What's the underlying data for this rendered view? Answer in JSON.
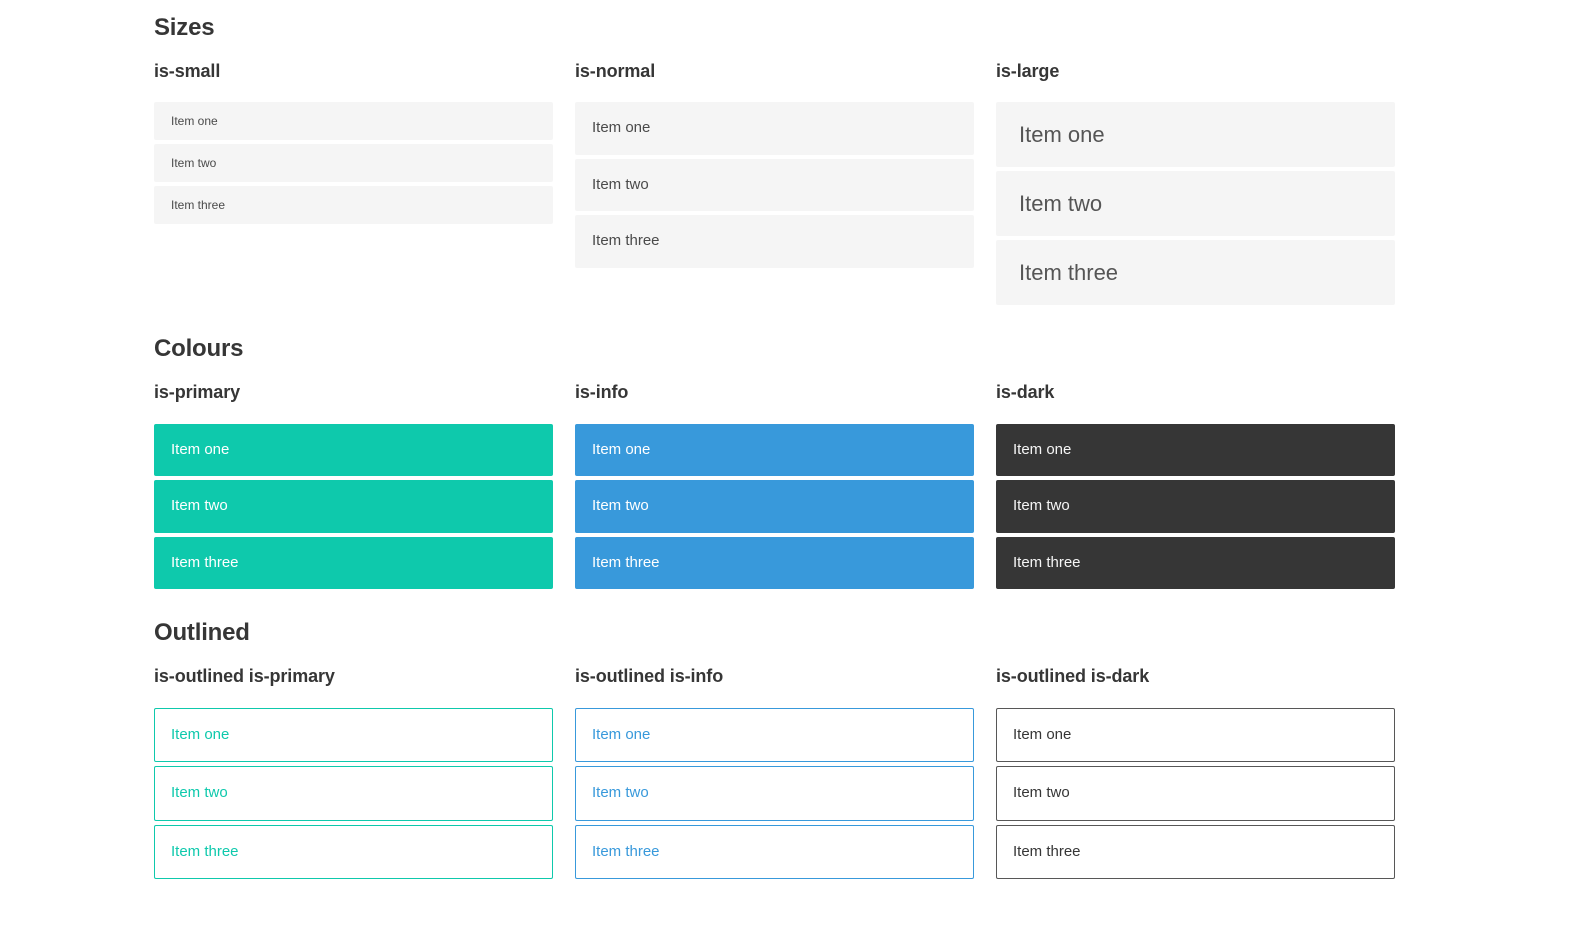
{
  "colors": {
    "primary": "#0ec9ac",
    "info": "#3899db",
    "dark": "#363636",
    "light_item_bg": "#f5f5f5",
    "item_text": "#4a4a4a",
    "heading_text": "#363636",
    "on_color_text": "#ffffff",
    "outlined_dark_border": "#575757",
    "page_background": "#ffffff"
  },
  "sections": [
    {
      "title": "Sizes",
      "columns": [
        {
          "heading": "is-small",
          "variant": "small",
          "items": [
            "Item one",
            "Item two",
            "Item three"
          ]
        },
        {
          "heading": "is-normal",
          "variant": "normal",
          "items": [
            "Item one",
            "Item two",
            "Item three"
          ]
        },
        {
          "heading": "is-large",
          "variant": "large",
          "items": [
            "Item one",
            "Item two",
            "Item three"
          ]
        }
      ]
    },
    {
      "title": "Colours",
      "columns": [
        {
          "heading": "is-primary",
          "variant": "primary",
          "items": [
            "Item one",
            "Item two",
            "Item three"
          ]
        },
        {
          "heading": "is-info",
          "variant": "info",
          "items": [
            "Item one",
            "Item two",
            "Item three"
          ]
        },
        {
          "heading": "is-dark",
          "variant": "dark",
          "items": [
            "Item one",
            "Item two",
            "Item three"
          ]
        }
      ]
    },
    {
      "title": "Outlined",
      "columns": [
        {
          "heading": "is-outlined is-primary",
          "variant": "outlined-primary",
          "items": [
            "Item one",
            "Item two",
            "Item three"
          ]
        },
        {
          "heading": "is-outlined is-info",
          "variant": "outlined-info",
          "items": [
            "Item one",
            "Item two",
            "Item three"
          ]
        },
        {
          "heading": "is-outlined is-dark",
          "variant": "outlined-dark",
          "items": [
            "Item one",
            "Item two",
            "Item three"
          ]
        }
      ]
    }
  ]
}
